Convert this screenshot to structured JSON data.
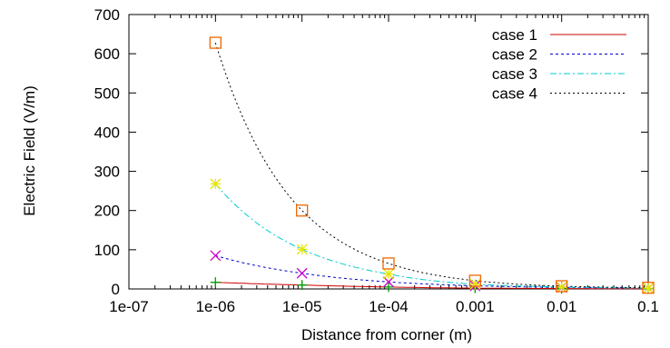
{
  "chart_data": {
    "type": "line",
    "xlabel": "Distance from corner (m)",
    "ylabel": "Electric Field (V/m)",
    "xscale": "log",
    "xlim": [
      1e-07,
      0.1
    ],
    "ylim": [
      0,
      700
    ],
    "x_tick_labels": [
      "1e-07",
      "1e-06",
      "1e-05",
      "1e-04",
      "0.001",
      "0.01",
      "0.1"
    ],
    "y_tick_labels": [
      "0",
      "100",
      "200",
      "300",
      "400",
      "500",
      "600",
      "700"
    ],
    "grid": false,
    "legend_position": "top-right",
    "series": [
      {
        "name": "case 1",
        "color": "#cc0000",
        "line_style": "solid",
        "marker": "plus",
        "marker_color": "#00a000",
        "x": [
          1e-06,
          1e-05,
          0.0001,
          0.001,
          0.01,
          0.1
        ],
        "y": [
          17,
          10,
          5,
          2,
          1,
          0.5
        ]
      },
      {
        "name": "case 2",
        "color": "#0000cc",
        "line_style": "dashed",
        "marker": "cross",
        "marker_color": "#cc00cc",
        "x": [
          1e-06,
          1e-05,
          0.0001,
          0.001,
          0.01,
          0.1
        ],
        "y": [
          85,
          40,
          18,
          8,
          4,
          2
        ]
      },
      {
        "name": "case 3",
        "color": "#00cccc",
        "line_style": "dash-dot",
        "marker": "star",
        "marker_color": "#e6e600",
        "x": [
          1e-06,
          1e-05,
          0.0001,
          0.001,
          0.01,
          0.1
        ],
        "y": [
          268,
          101,
          38,
          12,
          5,
          2
        ]
      },
      {
        "name": "case 4",
        "color": "#000000",
        "line_style": "dotted",
        "marker": "square",
        "marker_color": "#ee6600",
        "x": [
          1e-06,
          1e-05,
          0.0001,
          0.001,
          0.01,
          0.1
        ],
        "y": [
          628,
          200,
          65,
          21,
          7,
          3
        ]
      }
    ]
  }
}
